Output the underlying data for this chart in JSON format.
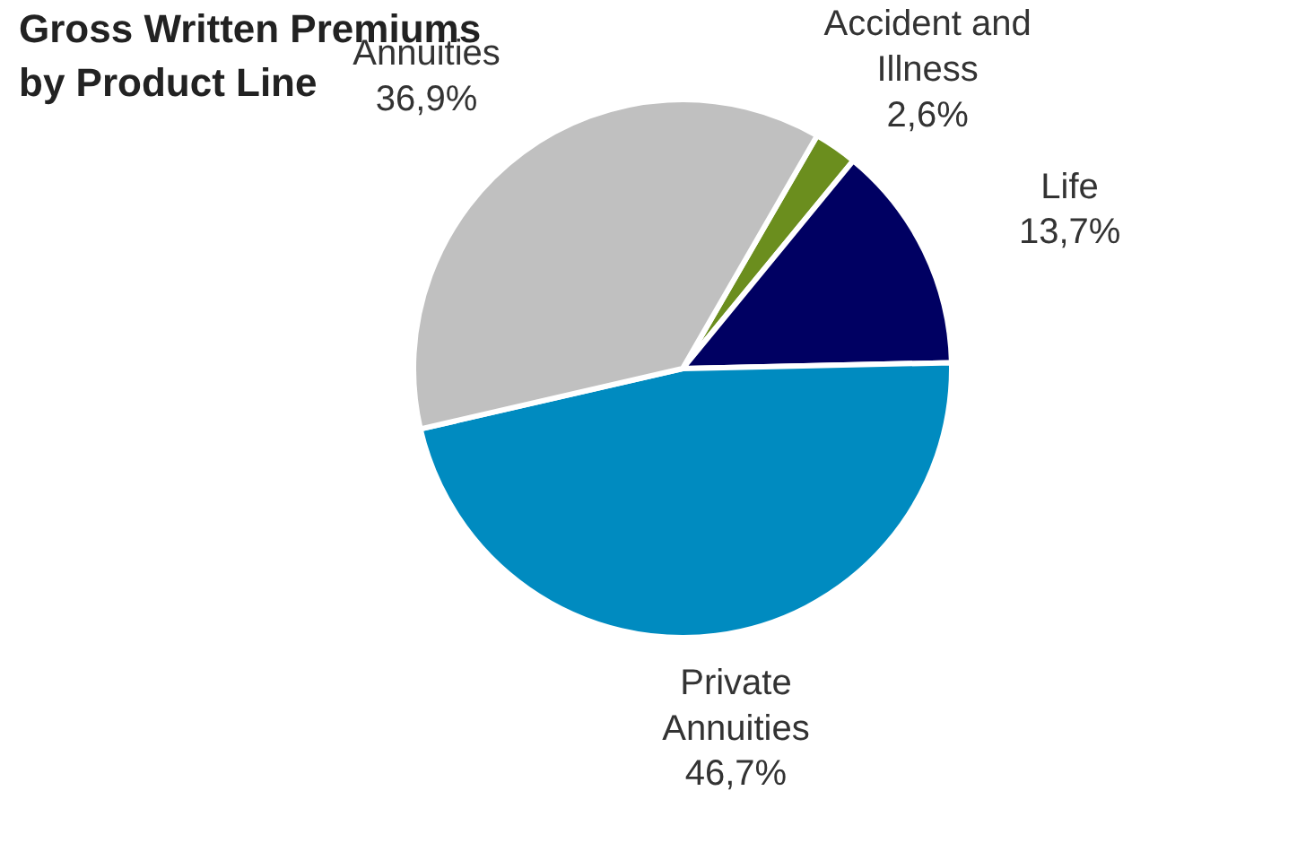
{
  "chart_data": {
    "type": "pie",
    "title": "Gross Written Premiums by Product Line",
    "categories": [
      "Accident and Illness",
      "Life",
      "Private Annuities",
      "Annuities"
    ],
    "values": [
      2.6,
      13.7,
      46.7,
      36.9
    ],
    "colors": [
      "#6b8e1e",
      "#000062",
      "#008bc0",
      "#c0c0c0"
    ],
    "value_labels": [
      "2,6%",
      "13,7%",
      "46,7%",
      "36,9%"
    ]
  }
}
